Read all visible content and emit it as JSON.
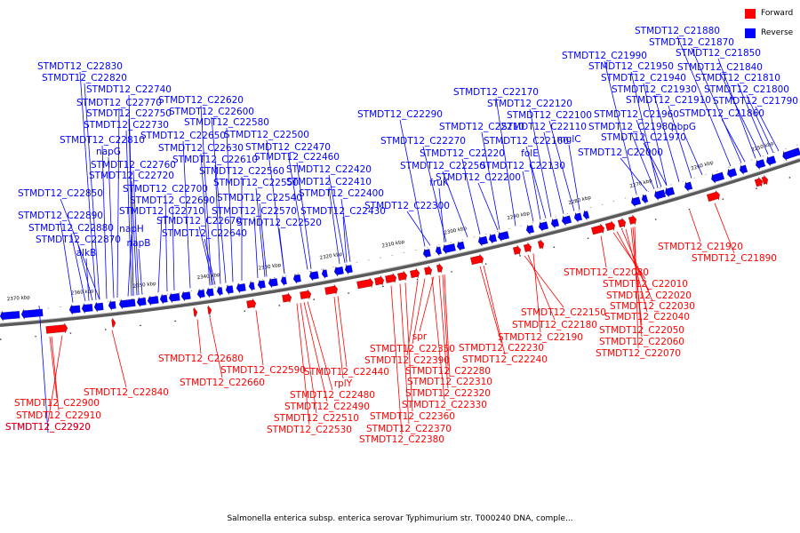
{
  "legend": [
    {
      "label": "Forward",
      "color": "#ff0000"
    },
    {
      "label": "Reverse",
      "color": "#0000ff"
    }
  ],
  "colors": {
    "forward": "#ff0000",
    "reverse": "#0000ff",
    "line": "#555555"
  },
  "caption": "Salmonella enterica subsp. enterica serovar Typhimurium str. T000240 DNA, comple...",
  "ticks": [
    "2370 kbp",
    "2360 kbp",
    "2350 kbp",
    "2340 kbp",
    "2330 kbp",
    "2320 kbp",
    "2310 kbp",
    "2300 kbp",
    "2290 kbp",
    "2280 kbp",
    "2270 kbp",
    "2260 kbp",
    "2250 kbp"
  ],
  "reverse_labels": [
    "STMDT12_C22830",
    "STMDT12_C22820",
    "STMDT12_C22740",
    "STMDT12_C22770",
    "STMDT12_C22750",
    "STMDT12_C22730",
    "STMDT12_C22810",
    "napG",
    "STMDT12_C22760",
    "STMDT12_C22720",
    "STMDT12_C22850",
    "STMDT12_C22700",
    "STMDT12_C22690",
    "STMDT12_C22710",
    "STMDT12_C22890",
    "STMDT12_C22880",
    "napH",
    "STMDT12_C22870",
    "napB",
    "alkB",
    "STMDT12_C22620",
    "STMDT12_C22600",
    "STMDT12_C22580",
    "STMDT12_C22650",
    "STMDT12_C22500",
    "STMDT12_C22630",
    "STMDT12_C22470",
    "STMDT12_C22610",
    "STMDT12_C22460",
    "STMDT12_C22560",
    "STMDT12_C22420",
    "STMDT12_C22550",
    "STMDT12_C22410",
    "STMDT12_C22400",
    "STMDT12_C22540",
    "STMDT12_C22670",
    "STMDT12_C22570",
    "STMDT12_C22430",
    "STMDT12_C22520",
    "STMDT12_C22640",
    "STMDT12_C22290",
    "STMDT12_C22170",
    "STMDT12_C22120",
    "STMDT12_C22100",
    "STMDT12_C22210",
    "STMDT12_C22110",
    "STMDT12_C22270",
    "STMDT12_C22160",
    "mglC",
    "STMDT12_C22220",
    "folE",
    "STMDT12_C22250",
    "STMDT12_C22130",
    "fruK",
    "STMDT12_C22200",
    "STMDT12_C22300",
    "STMDT12_C21880",
    "STMDT12_C21870",
    "STMDT12_C21990",
    "STMDT12_C21850",
    "STMDT12_C21950",
    "STMDT12_C21840",
    "STMDT12_C21940",
    "STMDT12_C21810",
    "STMDT12_C21930",
    "STMDT12_C21800",
    "STMDT12_C21910",
    "STMDT12_C21790",
    "STMDT12_C21960",
    "STMDT12_C21860",
    "STMDT12_C21980",
    "pbpG",
    "STMDT12_C21970",
    "STMDT12_C22000",
    "STMDT12_C22920"
  ],
  "forward_labels": [
    "STMDT12_C21920",
    "STMDT12_C21890",
    "STMDT12_C22080",
    "STMDT12_C22010",
    "STMDT12_C22020",
    "STMDT12_C22030",
    "STMDT12_C22150",
    "STMDT12_C22040",
    "STMDT12_C22180",
    "STMDT12_C22050",
    "STMDT12_C22190",
    "STMDT12_C22060",
    "STMDT12_C22070",
    "spr",
    "STMDT12_C22350",
    "STMDT12_C22230",
    "STMDT12_C22390",
    "STMDT12_C22240",
    "STMDT12_C22680",
    "STMDT12_C22590",
    "STMDT12_C22440",
    "STMDT12_C22280",
    "STMDT12_C22660",
    "rplY",
    "STMDT12_C22310",
    "STMDT12_C22840",
    "STMDT12_C22480",
    "STMDT12_C22320",
    "STMDT12_C22900",
    "STMDT12_C22490",
    "STMDT12_C22330",
    "STMDT12_C22910",
    "STMDT12_C22510",
    "STMDT12_C22360",
    "STMDT12_C22920",
    "STMDT12_C22530",
    "STMDT12_C22370",
    "STMDT12_C22380"
  ]
}
